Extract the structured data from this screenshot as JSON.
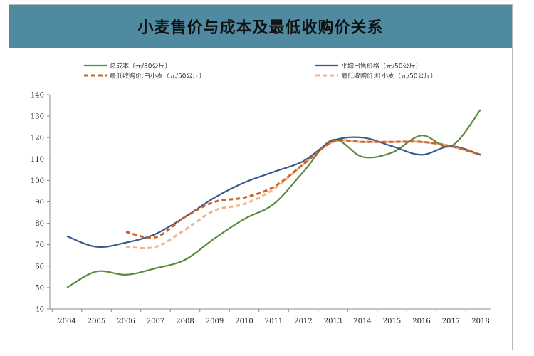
{
  "chart_data": {
    "type": "line",
    "title": "小麦售价与成本及最低收购价关系",
    "xlabel": "",
    "ylabel": "",
    "x": [
      "2004",
      "2005",
      "2006",
      "2007",
      "2008",
      "2009",
      "2010",
      "2011",
      "2012",
      "2013",
      "2014",
      "2015",
      "2016",
      "2017",
      "2018"
    ],
    "ylim": [
      40,
      140
    ],
    "yticks": [
      40,
      50,
      60,
      70,
      80,
      90,
      100,
      110,
      120,
      130,
      140
    ],
    "grid": false,
    "legend_position": "top",
    "series": [
      {
        "name": "总成本（元/50公斤）",
        "color": "#5a8a3a",
        "dash": "solid",
        "values": [
          50,
          57.5,
          56,
          59,
          63,
          73,
          82,
          89,
          104,
          119,
          111,
          113,
          121,
          116,
          133
        ]
      },
      {
        "name": "平均出售价格（元/50公斤）",
        "color": "#3a5a8c",
        "dash": "solid",
        "values": [
          74,
          69,
          71,
          75,
          83,
          92,
          99,
          104,
          109,
          118.5,
          120,
          116,
          112,
          116,
          112
        ]
      },
      {
        "name": "最低收购价:白小麦（元/50公斤）",
        "color": "#c8642c",
        "dash": "dash",
        "values": [
          null,
          null,
          76,
          73.5,
          83,
          90,
          92,
          97,
          107.5,
          118,
          118,
          118,
          118,
          116,
          112
        ]
      },
      {
        "name": "最低收购价:红小麦（元/50公斤）",
        "color": "#f2b48a",
        "dash": "dash",
        "values": [
          null,
          null,
          69,
          69,
          77,
          86,
          89,
          96,
          107.5,
          118,
          118,
          118,
          118,
          116,
          112
        ]
      }
    ]
  }
}
